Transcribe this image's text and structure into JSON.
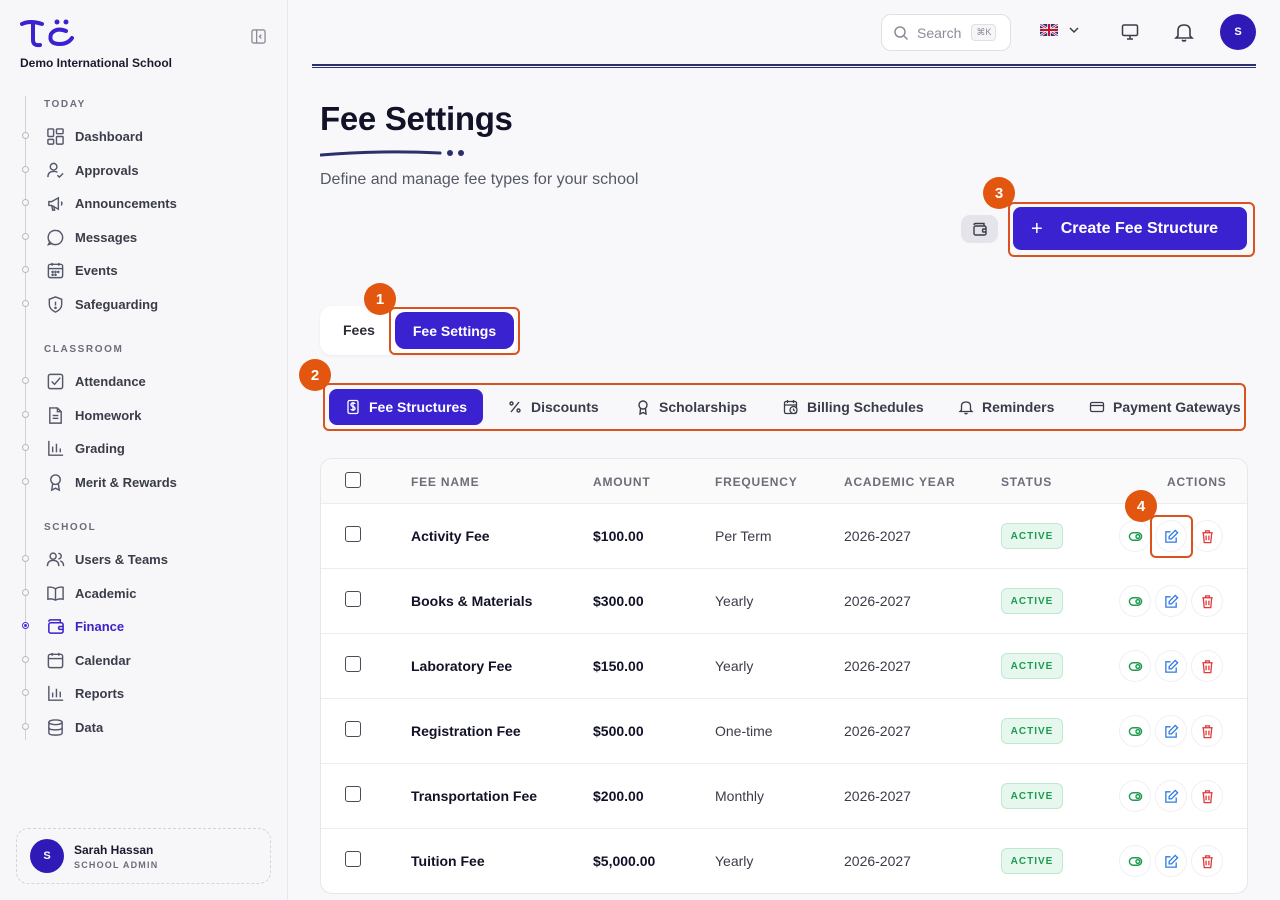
{
  "sidebar": {
    "school_name": "Demo International School",
    "sections": [
      {
        "label": "TODAY"
      },
      {
        "label": "CLASSROOM"
      },
      {
        "label": "SCHOOL"
      }
    ],
    "items": [
      {
        "label": "Dashboard",
        "icon": "dashboard-icon"
      },
      {
        "label": "Approvals",
        "icon": "user-check-icon"
      },
      {
        "label": "Announcements",
        "icon": "megaphone-icon"
      },
      {
        "label": "Messages",
        "icon": "chat-bubble-icon"
      },
      {
        "label": "Events",
        "icon": "calendar-grid-icon"
      },
      {
        "label": "Safeguarding",
        "icon": "shield-icon"
      },
      {
        "label": "Attendance",
        "icon": "checkbox-icon"
      },
      {
        "label": "Homework",
        "icon": "document-icon"
      },
      {
        "label": "Grading",
        "icon": "bar-chart-icon"
      },
      {
        "label": "Merit & Rewards",
        "icon": "award-icon"
      },
      {
        "label": "Users & Teams",
        "icon": "users-icon"
      },
      {
        "label": "Academic",
        "icon": "book-open-icon"
      },
      {
        "label": "Finance",
        "icon": "wallet-icon",
        "active": true
      },
      {
        "label": "Calendar",
        "icon": "calendar-icon"
      },
      {
        "label": "Reports",
        "icon": "bar-chart-icon"
      },
      {
        "label": "Data",
        "icon": "database-icon"
      }
    ],
    "user": {
      "initial": "S",
      "name": "Sarah Hassan",
      "role": "SCHOOL ADMIN"
    }
  },
  "topbar": {
    "search_placeholder": "Search",
    "search_shortcut": "⌘K",
    "avatar_initial": "S"
  },
  "page": {
    "title": "Fee Settings",
    "subtitle": "Define and manage fee types for your school",
    "create_label": "Create Fee Structure",
    "create_plus": "+"
  },
  "toggle": {
    "fees": "Fees",
    "settings": "Fee Settings"
  },
  "subtabs": [
    {
      "label": "Fee Structures",
      "icon": "dollar-doc-icon",
      "active": true
    },
    {
      "label": "Discounts",
      "icon": "percent-icon"
    },
    {
      "label": "Scholarships",
      "icon": "award-icon"
    },
    {
      "label": "Billing Schedules",
      "icon": "calendar-clock-icon"
    },
    {
      "label": "Reminders",
      "icon": "bell-icon"
    },
    {
      "label": "Payment Gateways",
      "icon": "credit-card-icon"
    }
  ],
  "annotations": [
    "1",
    "2",
    "3",
    "4"
  ],
  "table": {
    "headers": {
      "name": "FEE NAME",
      "amount": "AMOUNT",
      "frequency": "FREQUENCY",
      "year": "ACADEMIC YEAR",
      "status": "STATUS",
      "actions": "ACTIONS"
    },
    "rows": [
      {
        "name": "Activity Fee",
        "amount": "$100.00",
        "frequency": "Per Term",
        "year": "2026-2027",
        "status": "ACTIVE"
      },
      {
        "name": "Books & Materials",
        "amount": "$300.00",
        "frequency": "Yearly",
        "year": "2026-2027",
        "status": "ACTIVE"
      },
      {
        "name": "Laboratory Fee",
        "amount": "$150.00",
        "frequency": "Yearly",
        "year": "2026-2027",
        "status": "ACTIVE"
      },
      {
        "name": "Registration Fee",
        "amount": "$500.00",
        "frequency": "One-time",
        "year": "2026-2027",
        "status": "ACTIVE"
      },
      {
        "name": "Transportation Fee",
        "amount": "$200.00",
        "frequency": "Monthly",
        "year": "2026-2027",
        "status": "ACTIVE"
      },
      {
        "name": "Tuition Fee",
        "amount": "$5,000.00",
        "frequency": "Yearly",
        "year": "2026-2027",
        "status": "ACTIVE"
      }
    ]
  },
  "colors": {
    "brand": "#3b22d0",
    "highlight": "#d9531e",
    "badge": "#e2560f",
    "status_active": "#1d9b4f"
  }
}
